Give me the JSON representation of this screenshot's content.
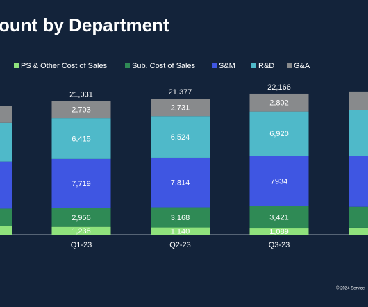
{
  "chart_data": {
    "type": "stacked-bar",
    "title": "ount by Department",
    "categories": [
      null,
      "Q1-23",
      "Q2-23",
      "Q3-23",
      null
    ],
    "series": [
      {
        "name": "PS & Other Cost of Sales",
        "color": "#8fe27c",
        "values": [
          1400,
          1238,
          1140,
          1089,
          1100
        ],
        "value_labels": [
          null,
          "1,238",
          "1,140",
          "1,089",
          null
        ]
      },
      {
        "name": "Sub. Cost of Sales",
        "color": "#2f8a55",
        "values": [
          2700,
          2956,
          3168,
          3421,
          3300
        ],
        "value_labels": [
          null,
          "2,956",
          "3,168",
          "3,421",
          null
        ]
      },
      {
        "name": "S&M",
        "color": "#3f56e2",
        "values": [
          7400,
          7719,
          7814,
          7934,
          8000
        ],
        "value_labels": [
          null,
          "7,719",
          "7,814",
          "7934",
          null
        ]
      },
      {
        "name": "R&D",
        "color": "#4fb9c9",
        "values": [
          6100,
          6415,
          6524,
          6920,
          7200
        ],
        "value_labels": [
          null,
          "6,415",
          "6,524",
          "6,920",
          null
        ]
      },
      {
        "name": "G&A",
        "color": "#888a8c",
        "values": [
          2600,
          2703,
          2731,
          2802,
          2900
        ],
        "value_labels": [
          null,
          "2,703",
          "2,731",
          "2,802",
          null
        ]
      }
    ],
    "totals": [
      null,
      21031,
      21377,
      22166,
      null
    ],
    "totals_labels": [
      null,
      "21,031",
      "21,377",
      "22,166",
      null
    ],
    "ylim": [
      0,
      25000
    ],
    "footer": "© 2024 Service"
  }
}
